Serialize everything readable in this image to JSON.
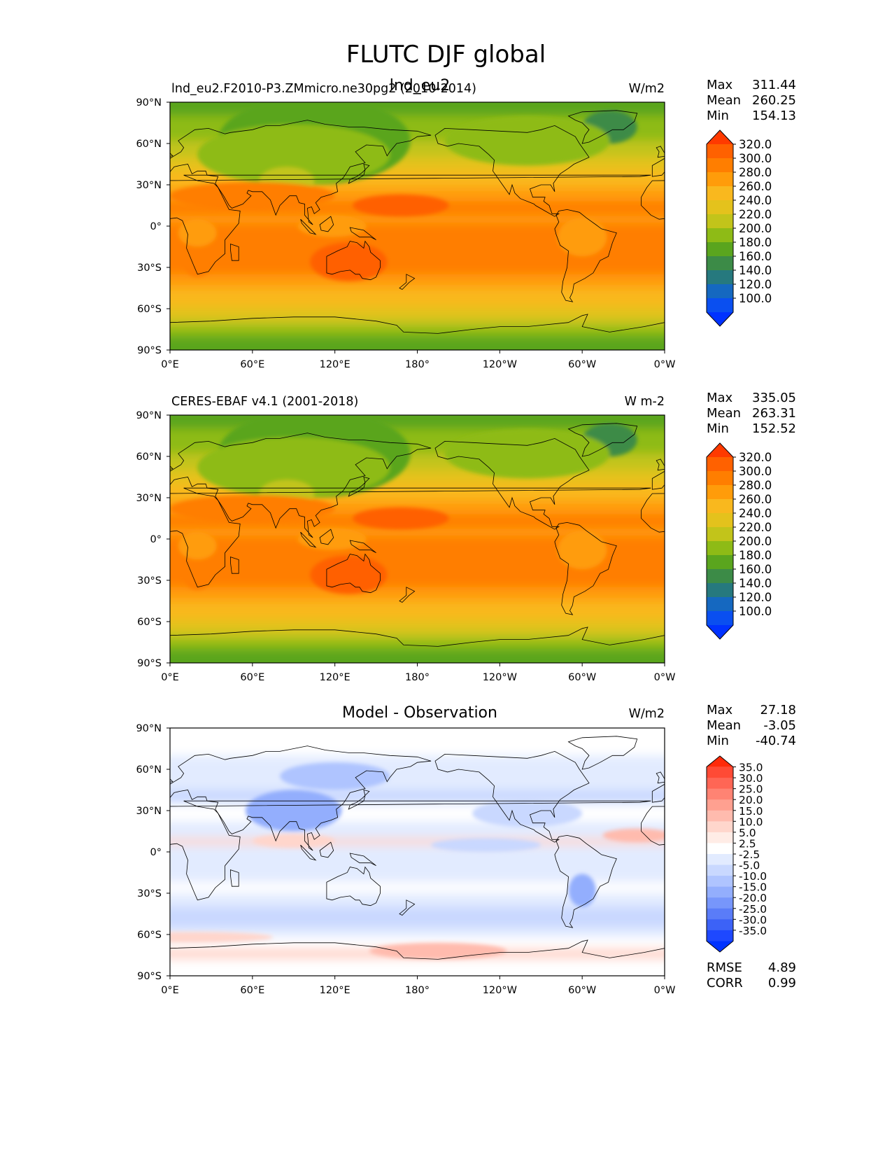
{
  "title": "FLUTC DJF global",
  "panels": [
    {
      "id": "model",
      "left_title": "lnd_eu2.F2010-P3.ZMmicro.ne30pg2 (2010-2014)",
      "center_title": "lnd_eu2",
      "units": "W/m2",
      "stats": {
        "max_label": "Max",
        "max": "311.44",
        "mean_label": "Mean",
        "mean": "260.25",
        "min_label": "Min",
        "min": "154.13"
      },
      "colorbar_labels": [
        "320.0",
        "300.0",
        "280.0",
        "260.0",
        "240.0",
        "220.0",
        "200.0",
        "180.0",
        "160.0",
        "140.0",
        "120.0",
        "100.0"
      ],
      "colorbar_colors": [
        "#ff3a00",
        "#ff6100",
        "#ff7e00",
        "#ff9c0a",
        "#f9b81e",
        "#e4c21c",
        "#c2c41a",
        "#8ebb16",
        "#5aa51e",
        "#3c8b47",
        "#26797e",
        "#1568c0",
        "#0a4ff0",
        "#0032ff"
      ]
    },
    {
      "id": "obs",
      "left_title": "CERES-EBAF v4.1 (2001-2018)",
      "center_title": "",
      "units": "W m-2",
      "stats": {
        "max_label": "Max",
        "max": "335.05",
        "mean_label": "Mean",
        "mean": "263.31",
        "min_label": "Min",
        "min": "152.52"
      },
      "colorbar_labels": [
        "320.0",
        "300.0",
        "280.0",
        "260.0",
        "240.0",
        "220.0",
        "200.0",
        "180.0",
        "160.0",
        "140.0",
        "120.0",
        "100.0"
      ],
      "colorbar_colors": [
        "#ff3a00",
        "#ff6100",
        "#ff7e00",
        "#ff9c0a",
        "#f9b81e",
        "#e4c21c",
        "#c2c41a",
        "#8ebb16",
        "#5aa51e",
        "#3c8b47",
        "#26797e",
        "#1568c0",
        "#0a4ff0",
        "#0032ff"
      ]
    },
    {
      "id": "diff",
      "left_title": "",
      "center_title": "Model - Observation",
      "units": "W/m2",
      "stats": {
        "max_label": "Max",
        "max": "27.18",
        "mean_label": "Mean",
        "mean": "-3.05",
        "min_label": "Min",
        "min": "-40.74"
      },
      "colorbar_labels": [
        "35.0",
        "30.0",
        "25.0",
        "20.0",
        "15.0",
        "10.0",
        "5.0",
        "2.5",
        "-2.5",
        "-5.0",
        "-10.0",
        "-15.0",
        "-20.0",
        "-25.0",
        "-30.0",
        "-35.0"
      ],
      "colorbar_colors": [
        "#ff2a0a",
        "#ff4a35",
        "#ff6655",
        "#ff8373",
        "#ffa090",
        "#ffbbae",
        "#ffd6cc",
        "#ffece6",
        "#ffffff",
        "#e2ebff",
        "#c9d8ff",
        "#afc4ff",
        "#93aefd",
        "#7796fb",
        "#5a7cf8",
        "#3c62f7",
        "#1e48ff",
        "#0032ff"
      ],
      "rmse_label": "RMSE",
      "rmse": "4.89",
      "corr_label": "CORR",
      "corr": "0.99"
    }
  ],
  "axes": {
    "x_ticks": [
      "0°E",
      "60°E",
      "120°E",
      "180°",
      "120°W",
      "60°W",
      "0°W"
    ],
    "y_ticks": [
      "90°N",
      "60°N",
      "30°N",
      "0°",
      "30°S",
      "60°S",
      "90°S"
    ]
  }
}
